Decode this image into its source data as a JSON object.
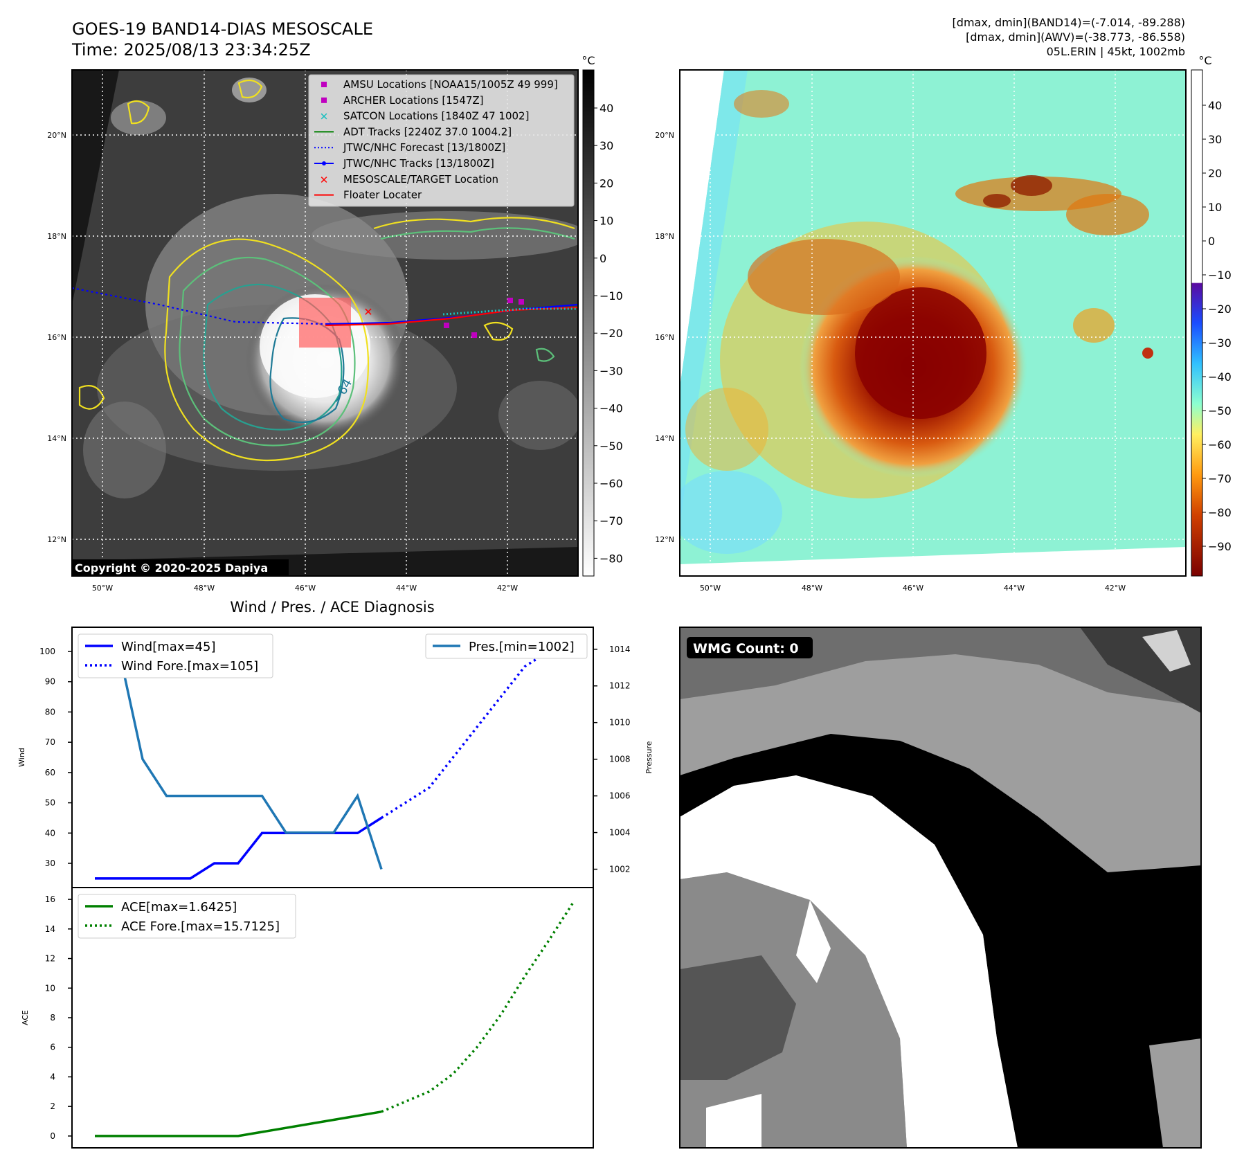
{
  "header": {
    "title": "GOES-19 BAND14-DIAS MESOSCALE",
    "time": "Time: 2025/08/13 23:34:25Z",
    "stats_line1": "[dmax, dmin](BAND14)=(-7.014, -89.288)",
    "stats_line2": "[dmax, dmin](AWV)=(-38.773, -86.558)",
    "storm_line": "05L.ERIN | 45kt, 1002mb"
  },
  "copyright": "Copyright © 2020-2025 Dapiya",
  "colorbar_unit": "°C",
  "gray_colorbar_ticks": [
    "40",
    "30",
    "20",
    "10",
    "0",
    "−10",
    "−20",
    "−30",
    "−40",
    "−50",
    "−60",
    "−70",
    "−80"
  ],
  "awv_colorbar_ticks": [
    "40",
    "30",
    "20",
    "10",
    "0",
    "−10",
    "−20",
    "−30",
    "−40",
    "−50",
    "−60",
    "−70",
    "−80",
    "−90"
  ],
  "lat_labels": [
    "20°N",
    "18°N",
    "16°N",
    "14°N",
    "12°N"
  ],
  "lon_labels": [
    "50°W",
    "48°W",
    "46°W",
    "44°W",
    "42°W"
  ],
  "contour_label": "−64",
  "map_legend": [
    {
      "label": "AMSU Locations [NOAA15/1005Z 49 999]",
      "marker": "square",
      "color": "#c000c0"
    },
    {
      "label": "ARCHER Locations [1547Z]",
      "marker": "square",
      "color": "#c000c0"
    },
    {
      "label": "SATCON Locations [1840Z 47 1002]",
      "marker": "x",
      "color": "#17bfbf"
    },
    {
      "label": "ADT Tracks [2240Z 37.0 1004.2]",
      "marker": "line",
      "color": "#008000"
    },
    {
      "label": "JTWC/NHC Forecast [13/1800Z]",
      "marker": "dotted",
      "color": "#0000ff"
    },
    {
      "label": "JTWC/NHC Tracks [13/1800Z]",
      "marker": "dotline",
      "color": "#0000ff"
    },
    {
      "label": "MESOSCALE/TARGET Location",
      "marker": "x",
      "color": "#ff0000"
    },
    {
      "label": "Floater Locater",
      "marker": "line",
      "color": "#ff0000"
    }
  ],
  "wmg_label": "WMG Count: 0",
  "chart_data": [
    {
      "type": "line",
      "title": "Wind / Pres. / ACE Diagnosis",
      "ylabel": "Wind",
      "y2label": "Pressure",
      "ylim": [
        22,
        108
      ],
      "y2lim": [
        1001,
        1015.2
      ],
      "yticks": [
        30,
        40,
        50,
        60,
        70,
        80,
        90,
        100
      ],
      "y2ticks": [
        1002,
        1004,
        1006,
        1008,
        1010,
        1012,
        1014
      ],
      "x": [
        0,
        1,
        2,
        3,
        4,
        5,
        6,
        7,
        8,
        9,
        10,
        11,
        12,
        13,
        14,
        15,
        16,
        17,
        18,
        19,
        20
      ],
      "series": [
        {
          "name": "Wind[max=45]",
          "axis": "left",
          "style": "solid",
          "color": "#0000ff",
          "x": [
            0,
            1,
            2,
            3,
            4,
            5,
            6,
            7,
            8,
            9,
            10,
            11,
            12
          ],
          "values": [
            25,
            25,
            25,
            25,
            25,
            30,
            30,
            40,
            40,
            40,
            40,
            40,
            45
          ]
        },
        {
          "name": "Wind Fore.[max=105]",
          "axis": "left",
          "style": "dotted",
          "color": "#0000ff",
          "x": [
            12,
            14,
            16,
            18,
            20
          ],
          "values": [
            45,
            55,
            75,
            95,
            105
          ]
        },
        {
          "name": "Pres.[min=1002]",
          "axis": "right",
          "style": "solid",
          "color": "#1f77b4",
          "x": [
            0,
            1,
            2,
            3,
            4,
            5,
            6,
            7,
            8,
            9,
            10,
            11,
            12
          ],
          "values": [
            1014,
            1014,
            1008,
            1006,
            1006,
            1006,
            1006,
            1006,
            1004,
            1004,
            1004,
            1006,
            1002
          ]
        }
      ]
    },
    {
      "type": "line",
      "ylabel": "ACE",
      "ylim": [
        -0.8,
        16.8
      ],
      "yticks": [
        0,
        2,
        4,
        6,
        8,
        10,
        12,
        14,
        16
      ],
      "series": [
        {
          "name": "ACE[max=1.6425]",
          "style": "solid",
          "color": "#008000",
          "x": [
            0,
            6,
            12
          ],
          "values": [
            0,
            0,
            1.6425
          ]
        },
        {
          "name": "ACE Fore.[max=15.7125]",
          "style": "dotted",
          "color": "#008000",
          "x": [
            12,
            14,
            15,
            16,
            17,
            18,
            19,
            20
          ],
          "values": [
            1.6425,
            3,
            4.2,
            6,
            8.2,
            10.8,
            13.2,
            15.7125
          ]
        }
      ]
    }
  ]
}
